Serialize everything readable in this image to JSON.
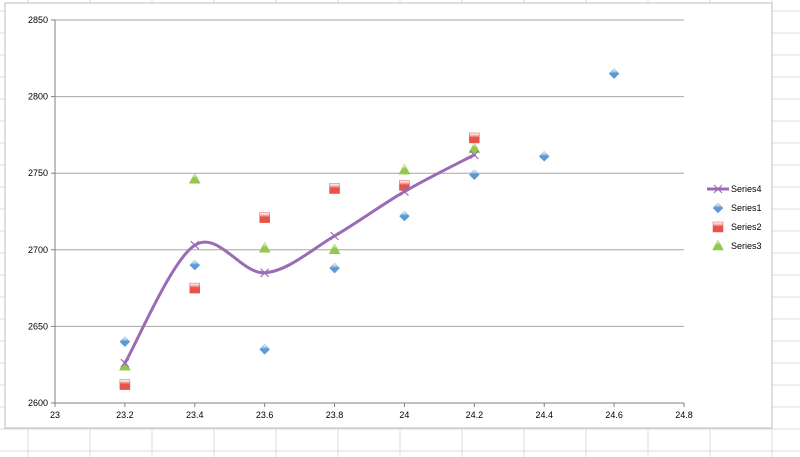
{
  "chart_data": {
    "type": "scatter",
    "title": "",
    "xlabel": "",
    "ylabel": "",
    "xlim": [
      23,
      24.8
    ],
    "ylim": [
      2600,
      2850
    ],
    "x_ticks": [
      "23",
      "23.2",
      "23.4",
      "23.6",
      "23.8",
      "24",
      "24.2",
      "24.4",
      "24.6",
      "24.8"
    ],
    "y_ticks": [
      "2600",
      "2650",
      "2700",
      "2750",
      "2800",
      "2850"
    ],
    "grid": "horizontal",
    "legend_position": "right",
    "series": [
      {
        "name": "Series4",
        "kind": "smooth-line",
        "marker": "x",
        "color": "#9b6bb5",
        "points": [
          [
            23.2,
            2626
          ],
          [
            23.4,
            2703
          ],
          [
            23.6,
            2685
          ],
          [
            23.8,
            2709
          ],
          [
            24.0,
            2738
          ],
          [
            24.2,
            2762
          ]
        ]
      },
      {
        "name": "Series1",
        "kind": "markers",
        "marker": "diamond",
        "color": "#5b9bd5",
        "points": [
          [
            23.2,
            2640
          ],
          [
            23.4,
            2690
          ],
          [
            23.6,
            2635
          ],
          [
            23.8,
            2688
          ],
          [
            24.0,
            2722
          ],
          [
            24.2,
            2749
          ],
          [
            24.4,
            2761
          ],
          [
            24.6,
            2815
          ]
        ]
      },
      {
        "name": "Series2",
        "kind": "markers",
        "marker": "square",
        "color": "#e8524a",
        "points": [
          [
            23.2,
            2612
          ],
          [
            23.4,
            2675
          ],
          [
            23.6,
            2721
          ],
          [
            23.8,
            2740
          ],
          [
            24.0,
            2742
          ],
          [
            24.2,
            2773
          ]
        ]
      },
      {
        "name": "Series3",
        "kind": "markers",
        "marker": "triangle",
        "color": "#92c94d",
        "points": [
          [
            23.2,
            2624
          ],
          [
            23.4,
            2746
          ],
          [
            23.6,
            2701
          ],
          [
            23.8,
            2700
          ],
          [
            24.0,
            2752
          ],
          [
            24.2,
            2766
          ]
        ]
      }
    ]
  }
}
